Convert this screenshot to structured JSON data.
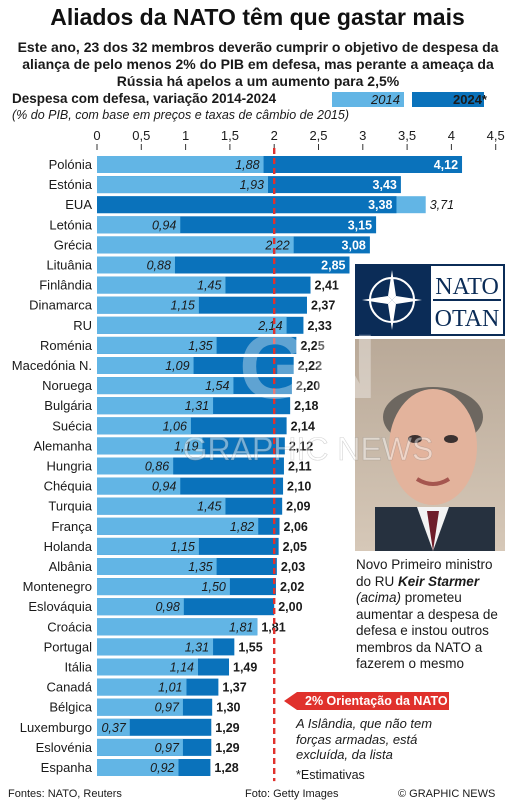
{
  "title": "Aliados da NATO têm que gastar mais",
  "subtitle": "Este ano, 23 dos 32 membros deverão cumprir o objetivo de despesa da aliança de pelo menos 2% do PIB em defesa, mas perante a ameaça da Rússia há apelos a um aumento para 2,5%",
  "chart_data": {
    "type": "bar",
    "title": "Despesa com defesa, variação 2014-2024",
    "subtitle": "(% do PIB, com base em preços e taxas de câmbio de 2015)",
    "legend": [
      {
        "name": "2014",
        "color": "#62b5e5"
      },
      {
        "name": "2024*",
        "color": "#0a72bb"
      }
    ],
    "xlim": [
      0,
      4.5
    ],
    "ticks": [
      "0",
      "0,5",
      "1",
      "1,5",
      "2",
      "2,5",
      "3",
      "3,5",
      "4",
      "4,5"
    ],
    "tick_values": [
      0,
      0.5,
      1,
      1.5,
      2,
      2.5,
      3,
      3.5,
      4,
      4.5
    ],
    "guideline": {
      "value": 2,
      "label": "2% Orientação da NATO",
      "color": "#e0312c"
    },
    "categories": [
      "Polónia",
      "Estónia",
      "EUA",
      "Letónia",
      "Grécia",
      "Lituânia",
      "Finlândia",
      "Dinamarca",
      "RU",
      "Roménia",
      "Macedónia N.",
      "Noruega",
      "Bulgária",
      "Suécia",
      "Alemanha",
      "Hungria",
      "Chéquia",
      "Turquia",
      "França",
      "Holanda",
      "Albânia",
      "Montenegro",
      "Eslováquia",
      "Croácia",
      "Portugal",
      "Itália",
      "Canadá",
      "Bélgica",
      "Luxemburgo",
      "Eslovénia",
      "Espanha"
    ],
    "series": [
      {
        "name": "2014",
        "values": [
          1.88,
          1.93,
          3.71,
          0.94,
          2.22,
          0.88,
          1.45,
          1.15,
          2.14,
          1.35,
          1.09,
          1.54,
          1.31,
          1.06,
          1.19,
          0.86,
          0.94,
          1.45,
          1.82,
          1.15,
          1.35,
          1.5,
          0.98,
          1.81,
          1.31,
          1.14,
          1.01,
          0.97,
          0.37,
          0.97,
          0.92
        ],
        "labels": [
          "1,88",
          "1,93",
          "3,71",
          "0,94",
          "2,22",
          "0,88",
          "1,45",
          "1,15",
          "2,14",
          "1,35",
          "1,09",
          "1,54",
          "1,31",
          "1,06",
          "1,19",
          "0,86",
          "0,94",
          "1,45",
          "1,82",
          "1,15",
          "1,35",
          "1,50",
          "0,98",
          "1,81",
          "1,31",
          "1,14",
          "1,01",
          "0,97",
          "0,37",
          "0,97",
          "0,92"
        ]
      },
      {
        "name": "2024*",
        "values": [
          4.12,
          3.43,
          3.38,
          3.15,
          3.08,
          2.85,
          2.41,
          2.37,
          2.33,
          2.25,
          2.22,
          2.2,
          2.18,
          2.14,
          2.12,
          2.11,
          2.1,
          2.09,
          2.06,
          2.05,
          2.03,
          2.02,
          2.0,
          1.81,
          1.55,
          1.49,
          1.37,
          1.3,
          1.29,
          1.29,
          1.28
        ],
        "labels": [
          "4,12",
          "3,43",
          "3,38",
          "3,15",
          "3,08",
          "2,85",
          "2,41",
          "2,37",
          "2,33",
          "2,25",
          "2,22",
          "2,20",
          "2,18",
          "2,14",
          "2,12",
          "2,11",
          "2,10",
          "2,09",
          "2,06",
          "2,05",
          "2,03",
          "2,02",
          "2,00",
          "1,81",
          "1,55",
          "1,49",
          "1,37",
          "1,30",
          "1,29",
          "1,29",
          "1,28"
        ]
      }
    ]
  },
  "nato_logo": {
    "top": "NATO",
    "bottom": "OTAN"
  },
  "photo_caption": {
    "before": "Novo Primeiro ministro do RU ",
    "name": "Keir Starmer",
    "paren": "(acima)",
    "after": " prometeu aumentar a despesa de defesa e instou outros membros da NATO a fazerem o mesmo"
  },
  "iceland_note": "A Islândia, que não tem forças armadas, está excluída, da lista",
  "estimate_note": "*Estimativas",
  "source": "Fontes: NATO, Reuters",
  "photo_credit": "Foto: Getty Images",
  "copyright": "© GRAPHIC NEWS",
  "watermark": {
    "logo": "GN",
    "text": "GRAPHIC NEWS"
  },
  "colors": {
    "bar_2014": "#62b5e5",
    "bar_2024": "#0a72bb",
    "guideline": "#e0312c"
  }
}
